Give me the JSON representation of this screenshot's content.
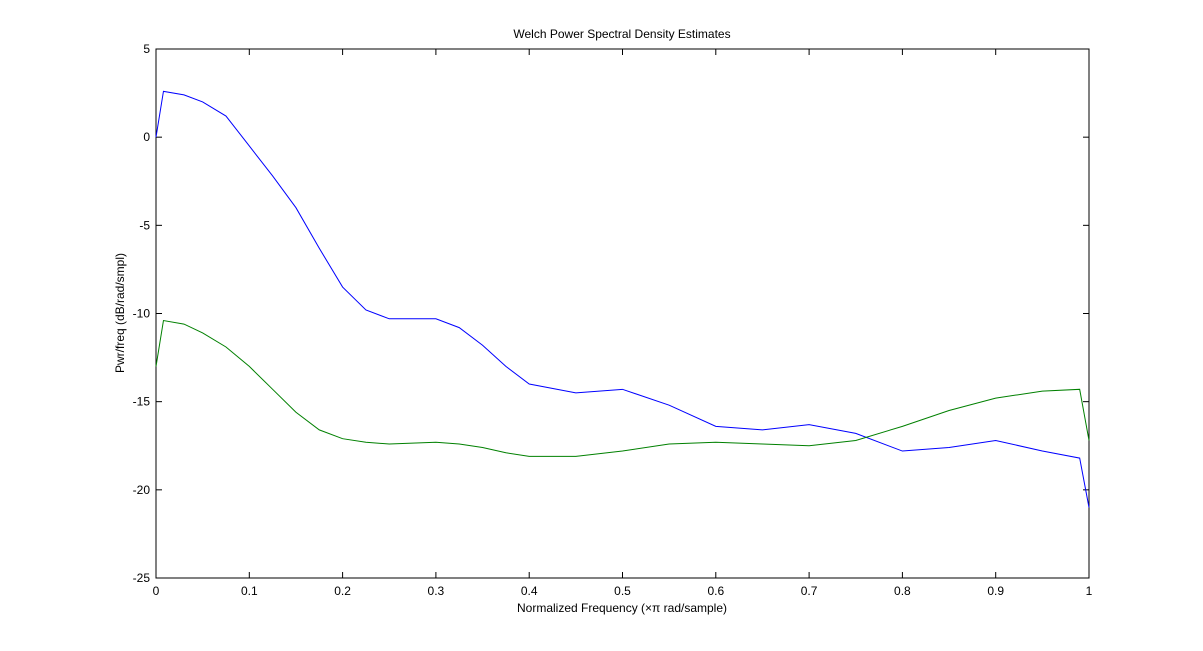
{
  "chart_data": {
    "type": "line",
    "title": "Welch Power Spectral Density Estimates",
    "xlabel": "Normalized Frequency (×π rad/sample)",
    "ylabel": "Pwr/freq (dB/rad/smpl)",
    "x": [
      0,
      0.008,
      0.03,
      0.05,
      0.075,
      0.1,
      0.125,
      0.15,
      0.175,
      0.2,
      0.225,
      0.25,
      0.3,
      0.325,
      0.35,
      0.375,
      0.4,
      0.45,
      0.5,
      0.55,
      0.6,
      0.65,
      0.7,
      0.75,
      0.8,
      0.85,
      0.9,
      0.95,
      0.99,
      1
    ],
    "series": [
      {
        "color": "#0000ff",
        "values": [
          0,
          2.6,
          2.4,
          2.0,
          1.2,
          -0.5,
          -2.2,
          -4.0,
          -6.3,
          -8.5,
          -9.8,
          -10.3,
          -10.3,
          -10.8,
          -11.8,
          -13.0,
          -14.0,
          -14.5,
          -14.3,
          -15.2,
          -16.4,
          -16.6,
          -16.3,
          -16.8,
          -17.8,
          -17.6,
          -17.2,
          -17.8,
          -18.2,
          -21.0
        ]
      },
      {
        "color": "#008000",
        "values": [
          -13.0,
          -10.4,
          -10.6,
          -11.1,
          -11.9,
          -13.0,
          -14.3,
          -15.6,
          -16.6,
          -17.1,
          -17.3,
          -17.4,
          -17.3,
          -17.4,
          -17.6,
          -17.9,
          -18.1,
          -18.1,
          -17.8,
          -17.4,
          -17.3,
          -17.4,
          -17.5,
          -17.2,
          -16.4,
          -15.5,
          -14.8,
          -14.4,
          -14.3,
          -17.2
        ]
      }
    ],
    "xlim": [
      0,
      1
    ],
    "xticks": [
      0,
      0.1,
      0.2,
      0.3,
      0.4,
      0.5,
      0.6,
      0.7,
      0.8,
      0.9,
      1
    ],
    "ylim": [
      -25,
      5
    ],
    "yticks": [
      -25,
      -20,
      -15,
      -10,
      -5,
      0,
      5
    ],
    "grid": false
  }
}
